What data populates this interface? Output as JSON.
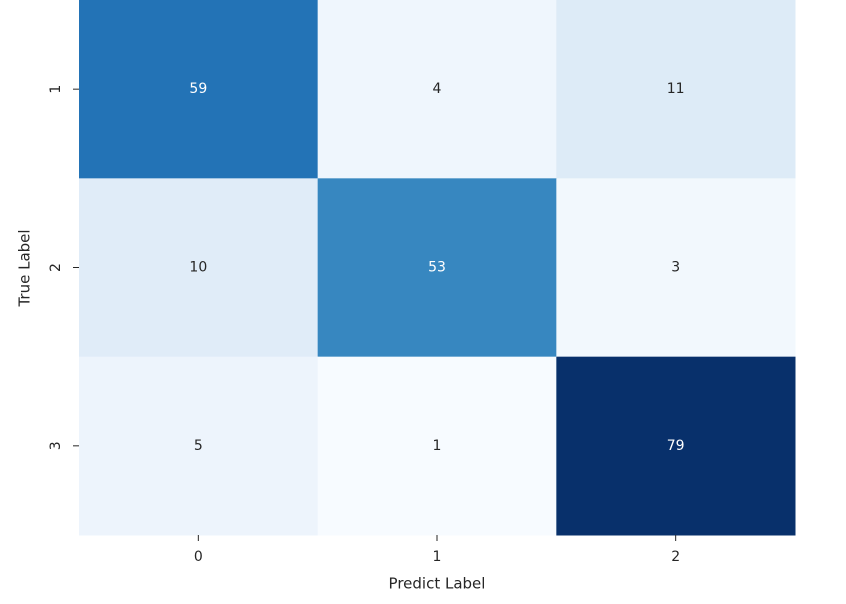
{
  "chart_data": {
    "type": "heatmap",
    "x_label": "Predict Label",
    "y_label": "True Label",
    "x_categories": [
      "0",
      "1",
      "2"
    ],
    "y_categories": [
      "1",
      "2",
      "3"
    ],
    "values": [
      [
        59,
        4,
        11
      ],
      [
        10,
        53,
        3
      ],
      [
        5,
        1,
        79
      ]
    ],
    "colormap": "Blues"
  }
}
